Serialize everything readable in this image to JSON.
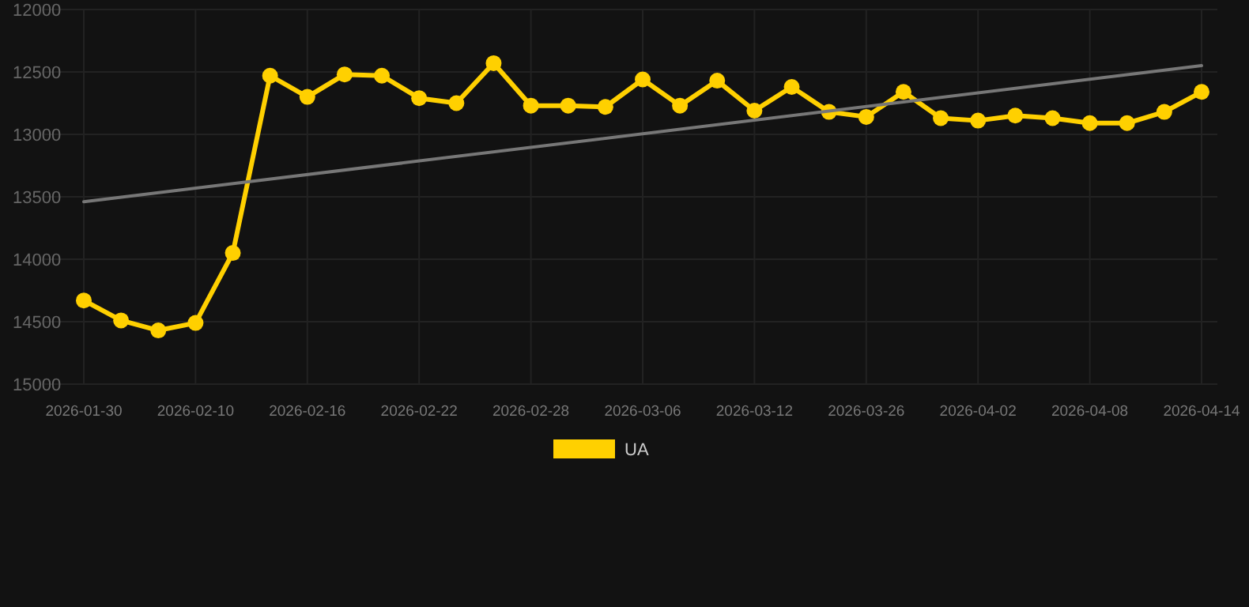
{
  "chart_data": {
    "type": "line",
    "categories": [
      "2026-01-30",
      null,
      null,
      "2026-02-10",
      null,
      null,
      "2026-02-16",
      null,
      null,
      "2026-02-22",
      null,
      null,
      "2026-02-28",
      null,
      null,
      "2026-03-06",
      null,
      null,
      "2026-03-12",
      null,
      null,
      "2026-03-26",
      null,
      null,
      "2026-04-02",
      null,
      null,
      "2026-04-08",
      null,
      null,
      "2026-04-14"
    ],
    "series": [
      {
        "name": "UA",
        "color": "#ffd000",
        "marker": "circle",
        "values": [
          14330,
          14490,
          14570,
          14510,
          13950,
          12530,
          12700,
          12520,
          12530,
          12710,
          12750,
          12430,
          12770,
          12770,
          12780,
          12560,
          12770,
          12570,
          12810,
          12620,
          12820,
          12860,
          12660,
          12870,
          12890,
          12850,
          12870,
          12910,
          12910,
          12820,
          12660
        ]
      },
      {
        "type": "line",
        "color": "#777777",
        "marker": "none",
        "values": [
          13540,
          null,
          null,
          null,
          null,
          null,
          null,
          null,
          null,
          null,
          null,
          null,
          null,
          null,
          null,
          null,
          null,
          null,
          null,
          null,
          null,
          null,
          null,
          null,
          null,
          null,
          null,
          null,
          null,
          null,
          12450
        ]
      }
    ],
    "ylim": [
      15000,
      12000
    ],
    "yticks": [
      12000,
      12500,
      13000,
      13500,
      14000,
      14500,
      15000
    ],
    "grid": true,
    "legend": "bottom"
  }
}
